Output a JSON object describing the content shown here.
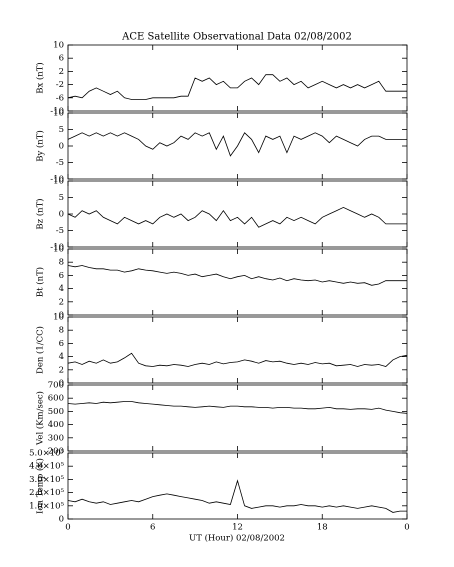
{
  "chart_data": {
    "type": "line",
    "title": "ACE Satellite Observational Data   02/08/2002",
    "xlabel": "UT (Hour)   02/08/2002",
    "color": "#000000",
    "xlim": [
      0,
      24
    ],
    "xticks": [
      0,
      6,
      12,
      18,
      {
        "value": 24,
        "label": "0"
      }
    ],
    "x": [
      0,
      0.5,
      1,
      1.5,
      2,
      2.5,
      3,
      3.5,
      4,
      4.5,
      5,
      5.5,
      6,
      6.5,
      7,
      7.5,
      8,
      8.5,
      9,
      9.5,
      10,
      10.5,
      11,
      11.5,
      12,
      12.5,
      13,
      13.5,
      14,
      14.5,
      15,
      15.5,
      16,
      16.5,
      17,
      17.5,
      18,
      18.5,
      19,
      19.5,
      20,
      20.5,
      21,
      21.5,
      22,
      22.5,
      23,
      23.5,
      24
    ],
    "panels": [
      {
        "ylabel": "Bx (nT)",
        "ylim": [
          -10,
          10
        ],
        "yticks": [
          -10,
          -6,
          -2,
          2,
          6,
          10
        ],
        "values": [
          -6,
          -5.5,
          -6,
          -4,
          -3,
          -4,
          -5,
          -4,
          -6,
          -6.5,
          -6.5,
          -6.5,
          -6,
          -6,
          -6,
          -6,
          -5.5,
          -5.5,
          0,
          -1,
          0,
          -2,
          -1,
          -3,
          -3,
          -1,
          0,
          -2,
          1,
          1,
          -1,
          0,
          -2,
          -1,
          -3,
          -2,
          -1,
          -2,
          -3,
          -2,
          -3,
          -2,
          -3,
          -2,
          -1,
          -4,
          -4,
          -4,
          -4
        ]
      },
      {
        "ylabel": "By (nT)",
        "ylim": [
          -10,
          10
        ],
        "yticks": [
          -10,
          -5,
          0,
          5,
          10
        ],
        "values": [
          2,
          3,
          4,
          3,
          4,
          3,
          4,
          3,
          4,
          3,
          2,
          0,
          -1,
          1,
          0,
          1,
          3,
          2,
          4,
          3,
          4,
          -1,
          3,
          -3,
          0,
          4,
          2,
          -2,
          3,
          2,
          3,
          -2,
          3,
          2,
          3,
          4,
          3,
          1,
          3,
          2,
          1,
          0,
          2,
          3,
          3,
          2,
          2,
          2,
          2
        ]
      },
      {
        "ylabel": "Bz (nT)",
        "ylim": [
          -10,
          10
        ],
        "yticks": [
          -10,
          -5,
          0,
          5,
          10
        ],
        "values": [
          0,
          -1,
          1,
          0,
          1,
          -1,
          -2,
          -3,
          -1,
          -2,
          -3,
          -2,
          -3,
          -1,
          0,
          -1,
          0,
          -2,
          -1,
          1,
          0,
          -2,
          1,
          -2,
          -1,
          -3,
          -1,
          -4,
          -3,
          -2,
          -3,
          -1,
          -2,
          -1,
          -2,
          -3,
          -1,
          0,
          1,
          2,
          1,
          0,
          -1,
          0,
          -1,
          -3,
          -3,
          -3,
          -3
        ]
      },
      {
        "ylabel": "Bt (nT)",
        "ylim": [
          0,
          10
        ],
        "yticks": [
          0,
          2,
          4,
          6,
          8,
          10
        ],
        "values": [
          7.5,
          7.3,
          7.5,
          7.2,
          7,
          7,
          6.8,
          6.8,
          6.5,
          6.7,
          7,
          6.8,
          6.7,
          6.5,
          6.3,
          6.5,
          6.3,
          6,
          6.2,
          5.8,
          6,
          6.2,
          5.8,
          5.5,
          5.8,
          6,
          5.5,
          5.8,
          5.5,
          5.3,
          5.6,
          5.2,
          5.5,
          5.3,
          5.2,
          5.3,
          5,
          5.2,
          5,
          4.8,
          5,
          4.8,
          4.9,
          4.5,
          4.7,
          5.2,
          5.2,
          5.2,
          5.2
        ]
      },
      {
        "ylabel": "Den (1/CC)",
        "ylim": [
          0,
          10
        ],
        "yticks": [
          0,
          2,
          4,
          6,
          8,
          10
        ],
        "values": [
          3,
          3.2,
          2.8,
          3.3,
          3,
          3.5,
          3,
          3.2,
          3.8,
          4.5,
          3,
          2.6,
          2.5,
          2.7,
          2.6,
          2.8,
          2.7,
          2.5,
          2.8,
          3,
          2.8,
          3.2,
          2.9,
          3.1,
          3.2,
          3.5,
          3.3,
          3,
          3.4,
          3.2,
          3.3,
          3,
          2.8,
          3,
          2.8,
          3.1,
          2.9,
          3,
          2.6,
          2.7,
          2.8,
          2.5,
          2.8,
          2.7,
          2.8,
          2.5,
          3.5,
          4,
          4.2
        ]
      },
      {
        "ylabel": "Vel (Km/sec)",
        "ylim": [
          200,
          700
        ],
        "yticks": [
          200,
          300,
          400,
          500,
          600,
          700
        ],
        "values": [
          560,
          555,
          560,
          565,
          560,
          570,
          565,
          570,
          575,
          575,
          565,
          560,
          555,
          550,
          545,
          540,
          540,
          535,
          530,
          535,
          540,
          535,
          530,
          540,
          540,
          535,
          535,
          530,
          530,
          525,
          530,
          530,
          525,
          525,
          520,
          520,
          525,
          530,
          520,
          520,
          515,
          520,
          520,
          515,
          525,
          510,
          500,
          490,
          485
        ]
      },
      {
        "ylabel": "Ion Temp (K)",
        "ylim": [
          0,
          500000
        ],
        "yticks": [
          0,
          {
            "value": 100000,
            "label": "1.0×10⁵"
          },
          {
            "value": 200000,
            "label": "2.0×10⁵"
          },
          {
            "value": 300000,
            "label": "3.0×10⁵"
          },
          {
            "value": 400000,
            "label": "4.0×10⁵"
          },
          {
            "value": 500000,
            "label": "5.0×10⁵"
          }
        ],
        "values": [
          140000,
          130000,
          150000,
          130000,
          120000,
          130000,
          110000,
          120000,
          130000,
          140000,
          130000,
          150000,
          170000,
          180000,
          190000,
          180000,
          170000,
          160000,
          150000,
          140000,
          120000,
          130000,
          120000,
          110000,
          290000,
          100000,
          80000,
          90000,
          100000,
          100000,
          90000,
          100000,
          100000,
          110000,
          100000,
          100000,
          90000,
          100000,
          90000,
          100000,
          90000,
          80000,
          90000,
          100000,
          90000,
          80000,
          50000,
          60000,
          60000
        ]
      }
    ]
  }
}
